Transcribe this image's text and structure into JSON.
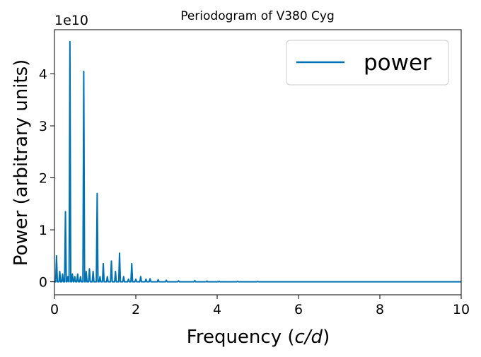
{
  "chart_data": {
    "type": "line",
    "title": "Periodogram of V380 Cyg",
    "xlabel_prefix": "Frequency (",
    "xlabel_var": "c/d",
    "xlabel_suffix": ")",
    "ylabel": "Power (arbitrary units)",
    "y_offset_label": "1e10",
    "xlim": [
      0,
      10
    ],
    "ylim": [
      -0.25,
      4.85
    ],
    "x_ticks": [
      0,
      2,
      4,
      6,
      8,
      10
    ],
    "y_ticks": [
      0,
      1,
      2,
      3,
      4
    ],
    "grid": false,
    "legend_position": "top-right",
    "line_color": "#0072b2",
    "series": [
      {
        "name": "power",
        "peaks": [
          {
            "x": 0.05,
            "y": 0.5
          },
          {
            "x": 0.13,
            "y": 0.2
          },
          {
            "x": 0.2,
            "y": 0.15
          },
          {
            "x": 0.27,
            "y": 1.35
          },
          {
            "x": 0.33,
            "y": 0.1
          },
          {
            "x": 0.38,
            "y": 4.62
          },
          {
            "x": 0.44,
            "y": 0.15
          },
          {
            "x": 0.5,
            "y": 0.1
          },
          {
            "x": 0.57,
            "y": 0.15
          },
          {
            "x": 0.64,
            "y": 0.1
          },
          {
            "x": 0.72,
            "y": 4.05
          },
          {
            "x": 0.78,
            "y": 0.2
          },
          {
            "x": 0.86,
            "y": 0.25
          },
          {
            "x": 0.95,
            "y": 0.2
          },
          {
            "x": 1.05,
            "y": 1.7
          },
          {
            "x": 1.12,
            "y": 0.1
          },
          {
            "x": 1.2,
            "y": 0.35
          },
          {
            "x": 1.3,
            "y": 0.1
          },
          {
            "x": 1.4,
            "y": 0.4
          },
          {
            "x": 1.5,
            "y": 0.2
          },
          {
            "x": 1.6,
            "y": 0.55
          },
          {
            "x": 1.7,
            "y": 0.1
          },
          {
            "x": 1.82,
            "y": 0.05
          },
          {
            "x": 1.9,
            "y": 0.35
          },
          {
            "x": 2.0,
            "y": 0.05
          },
          {
            "x": 2.12,
            "y": 0.1
          },
          {
            "x": 2.25,
            "y": 0.05
          },
          {
            "x": 2.35,
            "y": 0.06
          },
          {
            "x": 2.55,
            "y": 0.04
          },
          {
            "x": 2.75,
            "y": 0.03
          },
          {
            "x": 3.05,
            "y": 0.02
          },
          {
            "x": 3.45,
            "y": 0.025
          },
          {
            "x": 3.75,
            "y": 0.015
          },
          {
            "x": 4.05,
            "y": 0.01
          },
          {
            "x": 4.5,
            "y": 0.008
          },
          {
            "x": 5.0,
            "y": 0.006
          }
        ]
      }
    ]
  }
}
